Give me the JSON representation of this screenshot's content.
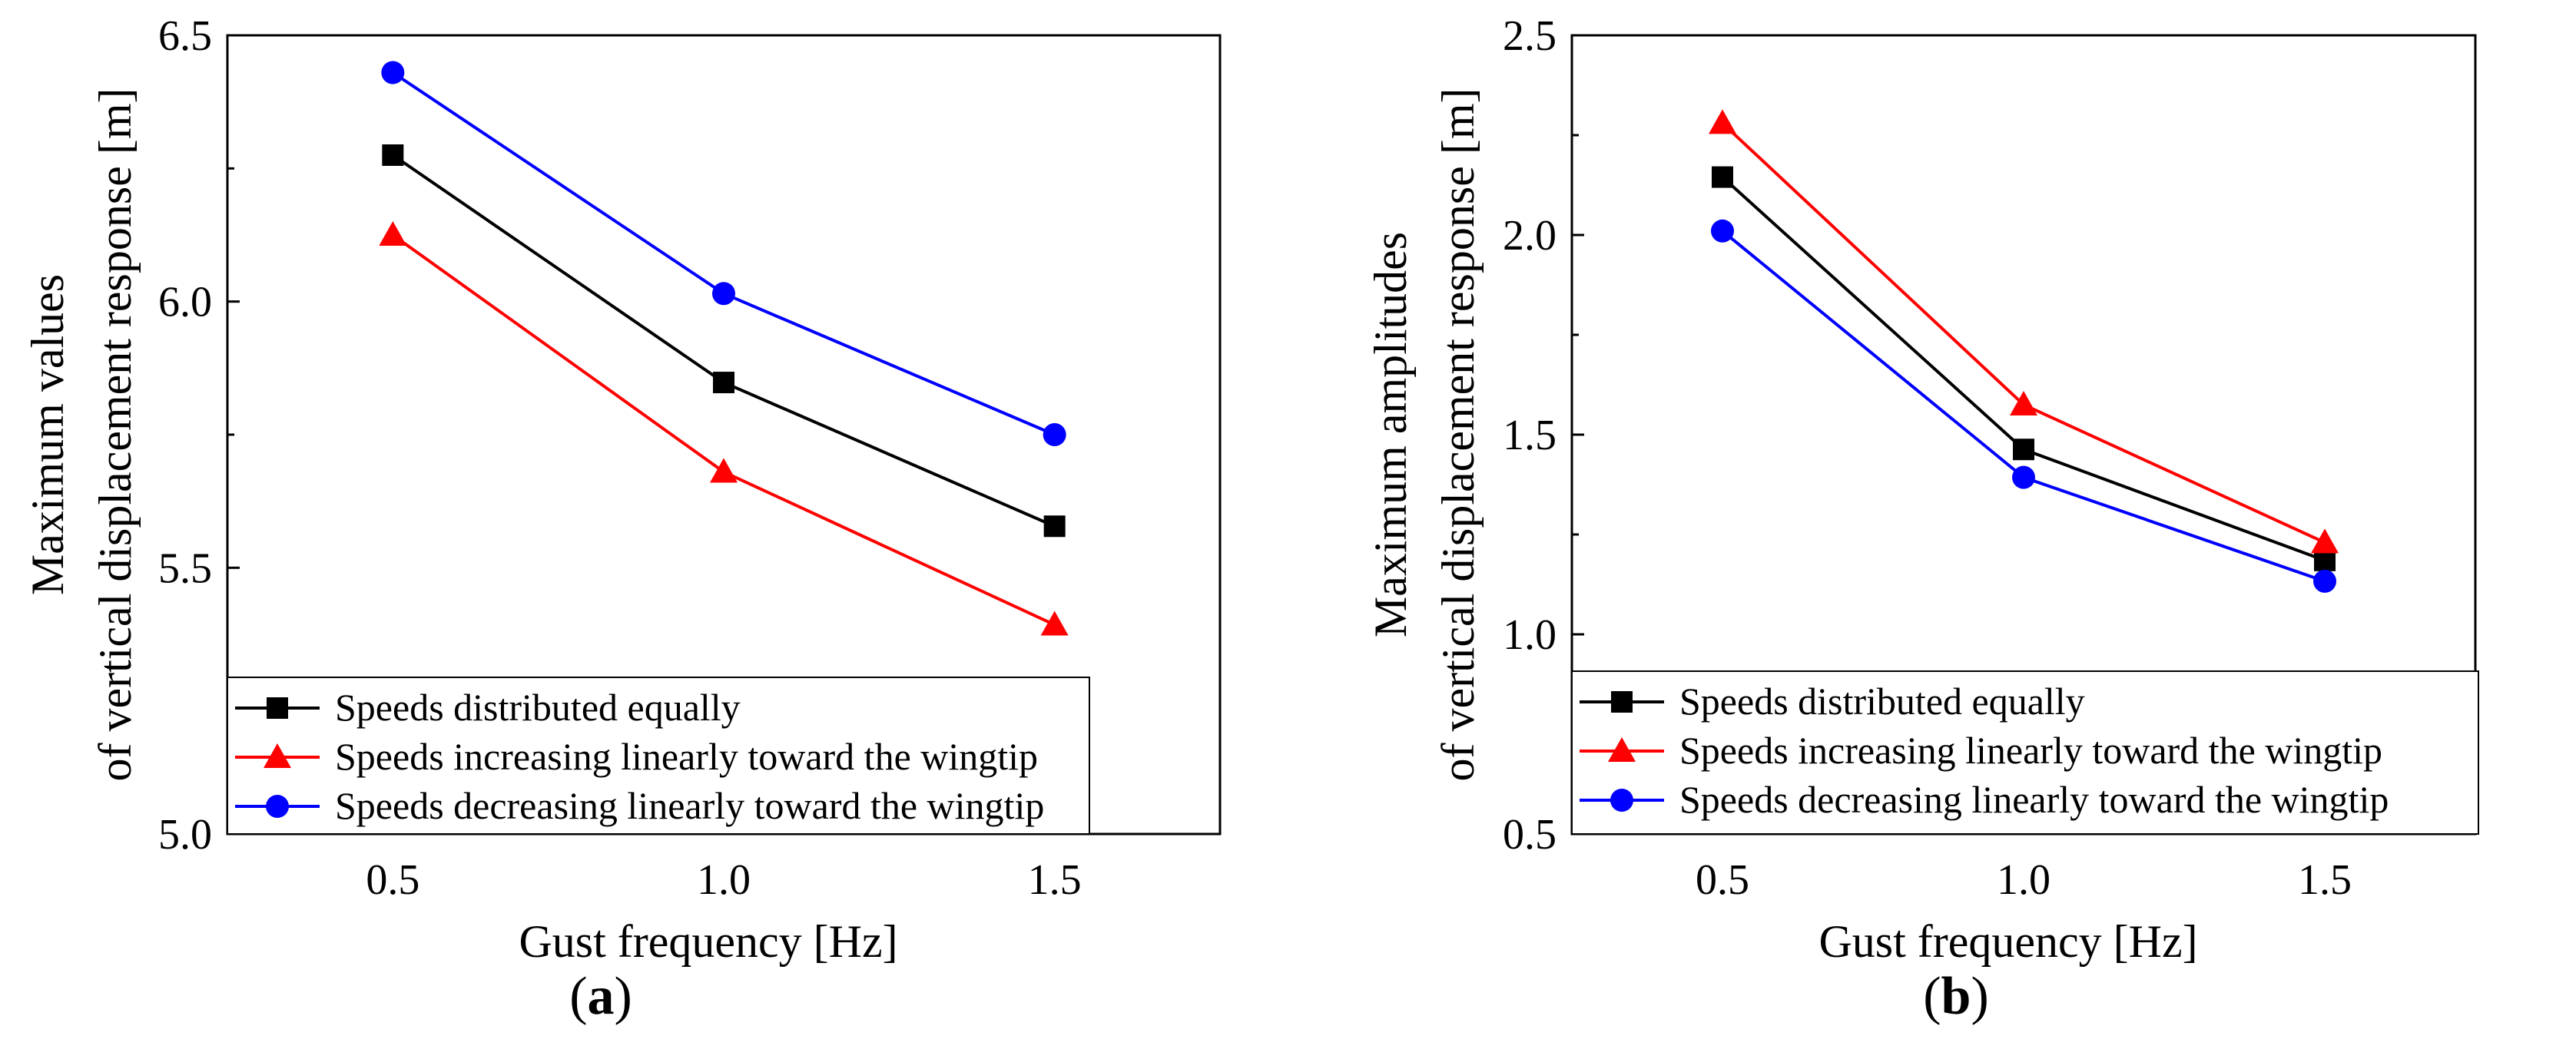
{
  "chart_data": [
    {
      "type": "line",
      "panel_label": "a",
      "xlabel": "Gust frequency [Hz]",
      "ylabel_lines": [
        "Maximum values",
        "of vertical displacement response [m]"
      ],
      "x": [
        0.5,
        1.0,
        1.5
      ],
      "x_tick_labels": [
        "0.5",
        "1.0",
        "1.5"
      ],
      "xlim": [
        0.25,
        1.75
      ],
      "ylim": [
        5.0,
        6.5
      ],
      "y_ticks": [
        5.0,
        5.5,
        6.0,
        6.5
      ],
      "y_tick_labels": [
        "5.0",
        "5.5",
        "6.0",
        "6.5"
      ],
      "legend_position": "bottom-left",
      "series": [
        {
          "name": "Speeds distributed equally",
          "color": "#000000",
          "marker": "square",
          "values": [
            6.275,
            5.848,
            5.578
          ]
        },
        {
          "name": "Speeds increasing linearly toward the wingtip",
          "color": "#ff0000",
          "marker": "triangle",
          "values": [
            6.125,
            5.68,
            5.393
          ]
        },
        {
          "name": "Speeds decreasing linearly toward the wingtip",
          "color": "#0000ff",
          "marker": "circle",
          "values": [
            6.43,
            6.015,
            5.75
          ]
        }
      ]
    },
    {
      "type": "line",
      "panel_label": "b",
      "xlabel": "Gust frequency [Hz]",
      "ylabel_lines": [
        "Maximum amplitudes",
        "of vertical displacement response [m]"
      ],
      "x": [
        0.5,
        1.0,
        1.5
      ],
      "x_tick_labels": [
        "0.5",
        "1.0",
        "1.5"
      ],
      "xlim": [
        0.25,
        1.75
      ],
      "ylim": [
        0.5,
        2.5
      ],
      "y_ticks": [
        0.5,
        1.0,
        1.5,
        2.0,
        2.5
      ],
      "y_tick_labels": [
        "0.5",
        "1.0",
        "1.5",
        "2.0",
        "2.5"
      ],
      "legend_position": "bottom-left",
      "series": [
        {
          "name": "Speeds distributed equally",
          "color": "#000000",
          "marker": "square",
          "values": [
            2.145,
            1.463,
            1.185
          ]
        },
        {
          "name": "Speeds increasing linearly toward the wingtip",
          "color": "#ff0000",
          "marker": "triangle",
          "values": [
            2.28,
            1.575,
            1.23
          ]
        },
        {
          "name": "Speeds decreasing linearly toward the wingtip",
          "color": "#0000ff",
          "marker": "circle",
          "values": [
            2.01,
            1.393,
            1.133
          ]
        }
      ]
    }
  ]
}
